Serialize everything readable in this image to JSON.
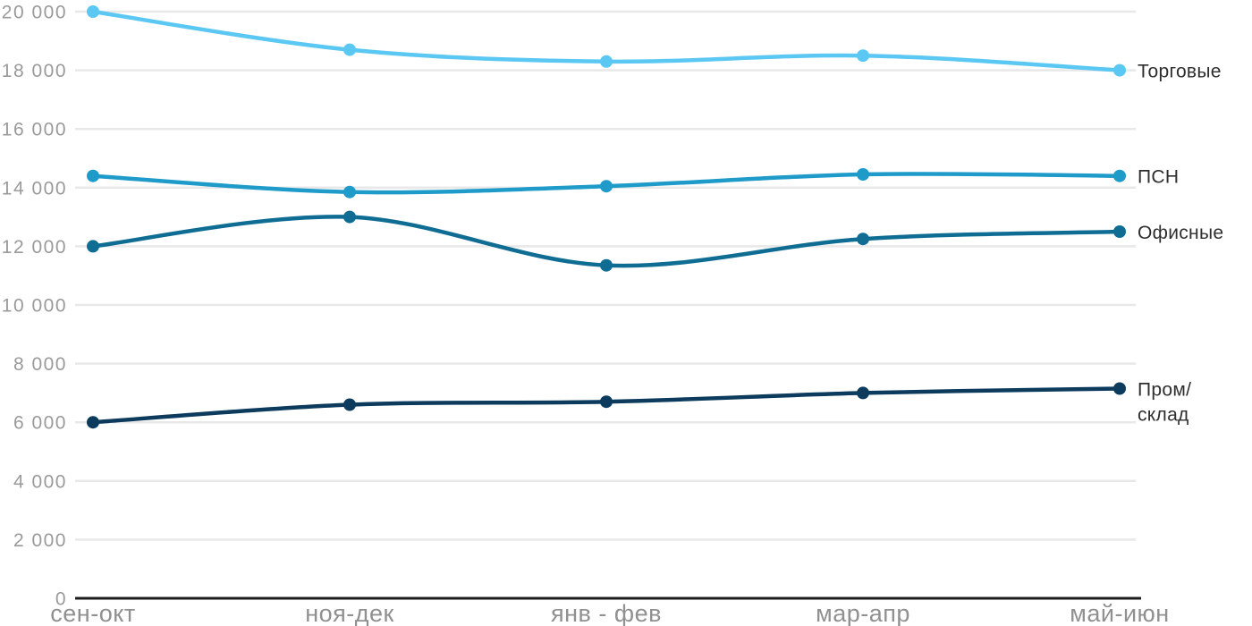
{
  "chart_data": {
    "type": "line",
    "title": "",
    "xlabel": "",
    "ylabel": "",
    "categories": [
      "сен-окт",
      "ноя-дек",
      "янв - фев",
      "мар-апр",
      "май-июн"
    ],
    "series": [
      {
        "key": "torgovye",
        "name": "Торговые",
        "label_lines": [
          "Торговые"
        ],
        "color": "#5AC8F2",
        "values": [
          20000,
          18700,
          18300,
          18500,
          18000
        ]
      },
      {
        "key": "psn",
        "name": "ПСН",
        "label_lines": [
          "ПСН"
        ],
        "color": "#1E9BC9",
        "values": [
          14400,
          13850,
          14050,
          14450,
          14400
        ]
      },
      {
        "key": "ofisnye",
        "name": "Офисные",
        "label_lines": [
          "Офисные"
        ],
        "color": "#0F6D94",
        "values": [
          12000,
          13000,
          11350,
          12250,
          12500
        ]
      },
      {
        "key": "prom-sklad",
        "name": "Пром/склад",
        "label_lines": [
          "Пром/",
          "склад"
        ],
        "color": "#0C3B5D",
        "values": [
          6000,
          6600,
          6700,
          7000,
          7150
        ]
      }
    ],
    "ylim": [
      0,
      20000
    ],
    "ytick_step": 2000,
    "y_tick_labels": [
      "0",
      "2 000",
      "4 000",
      "6 000",
      "8 000",
      "10 000",
      "12 000",
      "14 000",
      "16 000",
      "18 000",
      "20 000"
    ],
    "grid": true,
    "legend_position": "right-of-line-end",
    "colors": {
      "grid_line": "#E8E8E8",
      "axis_line": "#1C1C1C",
      "tick_label": "#9A9A9A",
      "series_label": "#2E2E2E",
      "background": "#FFFFFF"
    }
  }
}
